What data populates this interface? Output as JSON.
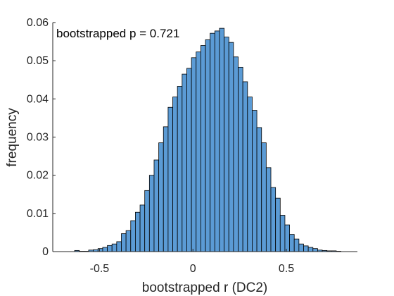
{
  "chart_data": {
    "type": "bar",
    "subtype": "histogram",
    "xlabel": "bootstrapped r (DC2)",
    "ylabel": "frequency",
    "annotation": "bootstrapped p = 0.721",
    "xlim": [
      -0.75,
      0.88
    ],
    "ylim": [
      0,
      0.06
    ],
    "xticks": [
      -0.5,
      0,
      0.5
    ],
    "xtick_labels": [
      "-0.5",
      "0",
      "0.5"
    ],
    "yticks": [
      0,
      0.01,
      0.02,
      0.03,
      0.04,
      0.05,
      0.06
    ],
    "ytick_labels": [
      "0",
      "0.01",
      "0.02",
      "0.03",
      "0.04",
      "0.05",
      "0.06"
    ],
    "bin_edges": [
      -0.633,
      -0.608,
      -0.583,
      -0.558,
      -0.533,
      -0.508,
      -0.483,
      -0.458,
      -0.433,
      -0.408,
      -0.383,
      -0.358,
      -0.333,
      -0.308,
      -0.283,
      -0.258,
      -0.233,
      -0.208,
      -0.183,
      -0.158,
      -0.133,
      -0.108,
      -0.083,
      -0.058,
      -0.033,
      -0.008,
      0.017,
      0.042,
      0.067,
      0.092,
      0.117,
      0.142,
      0.167,
      0.192,
      0.217,
      0.242,
      0.267,
      0.292,
      0.317,
      0.342,
      0.367,
      0.392,
      0.417,
      0.442,
      0.467,
      0.492,
      0.517,
      0.542,
      0.567,
      0.592,
      0.617,
      0.642,
      0.667,
      0.692,
      0.717,
      0.742,
      0.767,
      0.792
    ],
    "values": [
      0.0003,
      0.0001,
      0.0001,
      0.0004,
      0.0005,
      0.0008,
      0.0011,
      0.0016,
      0.002,
      0.0026,
      0.0047,
      0.0055,
      0.0081,
      0.0103,
      0.0122,
      0.016,
      0.02,
      0.024,
      0.0285,
      0.0327,
      0.0378,
      0.0405,
      0.0433,
      0.0465,
      0.048,
      0.0508,
      0.0523,
      0.054,
      0.0555,
      0.0572,
      0.0578,
      0.0585,
      0.0562,
      0.0548,
      0.051,
      0.0483,
      0.0445,
      0.0405,
      0.037,
      0.0325,
      0.0285,
      0.022,
      0.0168,
      0.014,
      0.0095,
      0.007,
      0.0045,
      0.0033,
      0.002,
      0.0015,
      0.0011,
      0.0008,
      0.0004,
      0.0003,
      0.0002,
      0.0002,
      0.0001
    ],
    "colors": {
      "bar_fill": "#5b9bd5",
      "bar_stroke": "#000000",
      "axis": "#262626"
    }
  }
}
